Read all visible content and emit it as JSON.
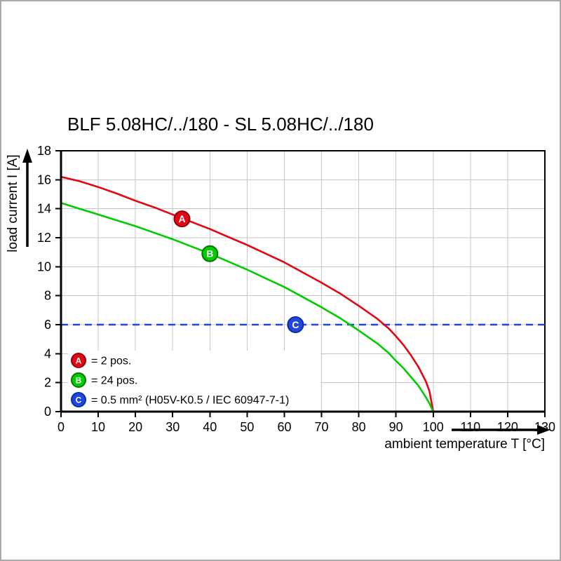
{
  "title": "BLF 5.08HC/../180 - SL 5.08HC/../180",
  "chart_data": {
    "type": "line",
    "title": "BLF 5.08HC/../180 - SL 5.08HC/../180",
    "xlabel": "ambient temperature T [°C]",
    "ylabel": "load current I [A]",
    "xlim": [
      0,
      130
    ],
    "ylim": [
      0,
      18
    ],
    "xticks": [
      0,
      10,
      20,
      30,
      40,
      50,
      60,
      70,
      80,
      90,
      100,
      110,
      120,
      130
    ],
    "yticks": [
      0,
      2,
      4,
      6,
      8,
      10,
      12,
      14,
      16,
      18
    ],
    "grid": true,
    "legend_position": "bottom-left-inside",
    "series": [
      {
        "name": "A",
        "legend": "= 2 pos.",
        "color": "#e30613",
        "edge_color": "#8e000a",
        "type": "curve",
        "points": [
          [
            0,
            16.2
          ],
          [
            5,
            15.9
          ],
          [
            10,
            15.5
          ],
          [
            15,
            15.05
          ],
          [
            20,
            14.55
          ],
          [
            25,
            14.1
          ],
          [
            30,
            13.6
          ],
          [
            35,
            13.1
          ],
          [
            40,
            12.6
          ],
          [
            45,
            12.05
          ],
          [
            50,
            11.5
          ],
          [
            55,
            10.9
          ],
          [
            60,
            10.3
          ],
          [
            65,
            9.6
          ],
          [
            70,
            8.9
          ],
          [
            75,
            8.15
          ],
          [
            80,
            7.3
          ],
          [
            85,
            6.4
          ],
          [
            88,
            5.75
          ],
          [
            90,
            5.2
          ],
          [
            92,
            4.6
          ],
          [
            94,
            3.9
          ],
          [
            96,
            3.1
          ],
          [
            98,
            2.1
          ],
          [
            99,
            1.4
          ],
          [
            100,
            0
          ]
        ]
      },
      {
        "name": "B",
        "legend": "= 24 pos.",
        "color": "#00cc00",
        "edge_color": "#007700",
        "type": "curve",
        "points": [
          [
            0,
            14.4
          ],
          [
            5,
            14.0
          ],
          [
            10,
            13.6
          ],
          [
            15,
            13.2
          ],
          [
            20,
            12.8
          ],
          [
            25,
            12.35
          ],
          [
            30,
            11.9
          ],
          [
            35,
            11.4
          ],
          [
            40,
            10.9
          ],
          [
            45,
            10.35
          ],
          [
            50,
            9.8
          ],
          [
            55,
            9.2
          ],
          [
            60,
            8.6
          ],
          [
            65,
            7.9
          ],
          [
            70,
            7.2
          ],
          [
            75,
            6.45
          ],
          [
            80,
            5.6
          ],
          [
            85,
            4.7
          ],
          [
            88,
            4.05
          ],
          [
            90,
            3.5
          ],
          [
            92,
            3.0
          ],
          [
            94,
            2.4
          ],
          [
            96,
            1.8
          ],
          [
            98,
            1.0
          ],
          [
            99,
            0.55
          ],
          [
            100,
            0
          ]
        ]
      },
      {
        "name": "C",
        "legend": "= 0.5 mm² (H05V-K0.5 / IEC 60947-7-1)",
        "color": "#2145e0",
        "edge_color": "#0b2f9e",
        "type": "hline",
        "value": 6
      }
    ],
    "markers": [
      {
        "series": "A",
        "x": 32.5,
        "y": 13.3
      },
      {
        "series": "B",
        "x": 40,
        "y": 10.9
      },
      {
        "series": "C",
        "x": 63,
        "y": 6
      }
    ]
  }
}
